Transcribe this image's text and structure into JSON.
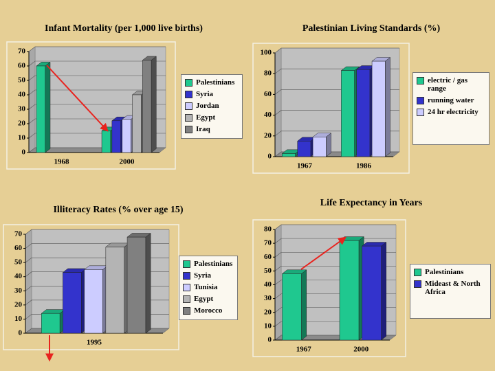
{
  "chart_data": [
    {
      "type": "bar",
      "title": "Infant Mortality (per 1,000 live births)",
      "categories": [
        "1968",
        "2000"
      ],
      "series": [
        {
          "name": "Palestinians",
          "color": "#1fc88f",
          "values": [
            60,
            15
          ]
        },
        {
          "name": "Syria",
          "color": "#3333cc",
          "values": [
            null,
            22
          ]
        },
        {
          "name": "Jordan",
          "color": "#ccccff",
          "values": [
            null,
            23
          ]
        },
        {
          "name": "Egypt",
          "color": "#b4b4b4",
          "values": [
            null,
            40
          ]
        },
        {
          "name": "Iraq",
          "color": "#808080",
          "values": [
            null,
            64
          ]
        }
      ],
      "ylim": [
        0,
        70
      ],
      "yticks": [
        0,
        10,
        20,
        30,
        40,
        50,
        60,
        70
      ],
      "grid": true,
      "legend": "right"
    },
    {
      "type": "bar",
      "title": "Palestinian Living Standards (%)",
      "categories": [
        "1967",
        "1986"
      ],
      "series": [
        {
          "name": "electric / gas range",
          "color": "#1fc88f",
          "values": [
            3,
            83
          ]
        },
        {
          "name": "running water",
          "color": "#3333cc",
          "values": [
            15,
            84
          ]
        },
        {
          "name": "24 hr electricity",
          "color": "#ccccff",
          "values": [
            19,
            92
          ]
        }
      ],
      "ylim": [
        0,
        100
      ],
      "yticks": [
        0,
        20,
        40,
        60,
        80,
        100
      ],
      "grid": true,
      "legend": "right"
    },
    {
      "type": "bar",
      "title": "Illiteracy Rates (% over age 15)",
      "categories": [
        "1995"
      ],
      "series": [
        {
          "name": "Palestinians",
          "color": "#1fc88f",
          "values": [
            14
          ]
        },
        {
          "name": "Syria",
          "color": "#3333cc",
          "values": [
            43
          ]
        },
        {
          "name": "Tunisia",
          "color": "#ccccff",
          "values": [
            45
          ]
        },
        {
          "name": "Egypt",
          "color": "#b4b4b4",
          "values": [
            61
          ]
        },
        {
          "name": "Morocco",
          "color": "#808080",
          "values": [
            68
          ]
        }
      ],
      "ylim": [
        0,
        70
      ],
      "yticks": [
        0,
        10,
        20,
        30,
        40,
        50,
        60,
        70
      ],
      "grid": true,
      "legend": "right"
    },
    {
      "type": "bar",
      "title": "Life Expectancy in Years",
      "categories": [
        "1967",
        "2000"
      ],
      "series": [
        {
          "name": "Palestinians",
          "color": "#1fc88f",
          "values": [
            48,
            72
          ]
        },
        {
          "name": "Mideast & North Africa",
          "color": "#3333cc",
          "values": [
            null,
            68
          ]
        }
      ],
      "ylim": [
        0,
        80
      ],
      "yticks": [
        0,
        10,
        20,
        30,
        40,
        50,
        60,
        70,
        80
      ],
      "grid": true,
      "legend": "right"
    }
  ]
}
